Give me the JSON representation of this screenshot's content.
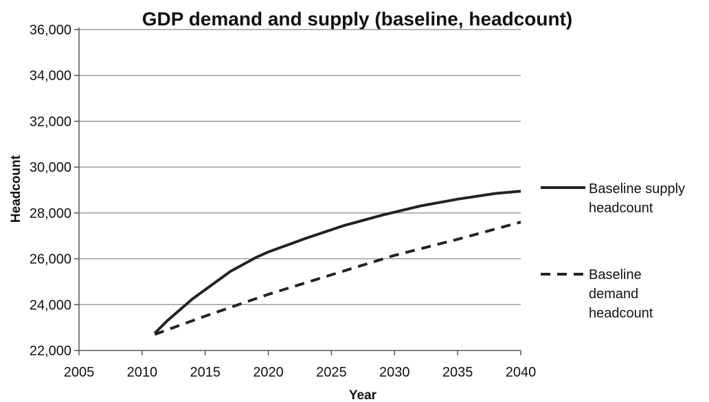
{
  "chart_data": {
    "type": "line",
    "title": "GDP demand and supply (baseline, headcount)",
    "xlabel": "Year",
    "ylabel": "Headcount",
    "xlim": [
      2005,
      2040
    ],
    "ylim": [
      22000,
      36000
    ],
    "x_ticks": [
      "2005",
      "2010",
      "2015",
      "2020",
      "2025",
      "2030",
      "2035",
      "2040"
    ],
    "y_ticks": [
      "22,000",
      "24,000",
      "26,000",
      "28,000",
      "30,000",
      "32,000",
      "34,000",
      "36,000"
    ],
    "grid": "horizontal",
    "legend_position": "right",
    "series": [
      {
        "name": "Baseline supply headcount",
        "style": "solid",
        "color": "#222222",
        "points": [
          [
            2011,
            22750
          ],
          [
            2012,
            23300
          ],
          [
            2014,
            24250
          ],
          [
            2016,
            25050
          ],
          [
            2017,
            25450
          ],
          [
            2019,
            26050
          ],
          [
            2020,
            26300
          ],
          [
            2023,
            26900
          ],
          [
            2026,
            27450
          ],
          [
            2029,
            27900
          ],
          [
            2032,
            28300
          ],
          [
            2035,
            28600
          ],
          [
            2038,
            28850
          ],
          [
            2040,
            28950
          ]
        ]
      },
      {
        "name": "Baseline demand headcount",
        "style": "dashed",
        "color": "#222222",
        "points": [
          [
            2011,
            22700
          ],
          [
            2015,
            23500
          ],
          [
            2020,
            24450
          ],
          [
            2025,
            25300
          ],
          [
            2030,
            26150
          ],
          [
            2035,
            26850
          ],
          [
            2040,
            27600
          ]
        ]
      }
    ]
  },
  "legend": {
    "supply": [
      "Baseline supply",
      "headcount"
    ],
    "demand": [
      "Baseline",
      "demand",
      "headcount"
    ]
  }
}
